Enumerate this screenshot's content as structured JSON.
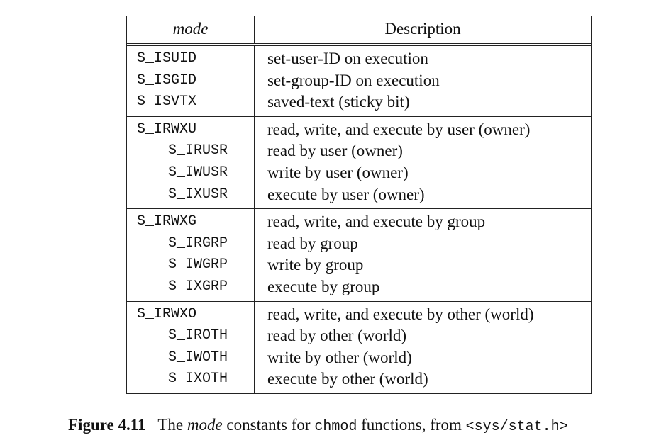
{
  "table": {
    "header": {
      "mode": "mode",
      "description": "Description"
    },
    "groups": [
      {
        "rows": [
          {
            "mode": "S_ISUID",
            "description": "set-user-ID on execution",
            "indent": false
          },
          {
            "mode": "S_ISGID",
            "description": "set-group-ID on execution",
            "indent": false
          },
          {
            "mode": "S_ISVTX",
            "description": "saved-text (sticky bit)",
            "indent": false
          }
        ]
      },
      {
        "rows": [
          {
            "mode": "S_IRWXU",
            "description": "read, write, and execute by user (owner)",
            "indent": false
          },
          {
            "mode": "S_IRUSR",
            "description": "read by user (owner)",
            "indent": true
          },
          {
            "mode": "S_IWUSR",
            "description": "write by user (owner)",
            "indent": true
          },
          {
            "mode": "S_IXUSR",
            "description": "execute by user (owner)",
            "indent": true
          }
        ]
      },
      {
        "rows": [
          {
            "mode": "S_IRWXG",
            "description": "read, write, and execute by group",
            "indent": false
          },
          {
            "mode": "S_IRGRP",
            "description": "read by group",
            "indent": true
          },
          {
            "mode": "S_IWGRP",
            "description": "write by group",
            "indent": true
          },
          {
            "mode": "S_IXGRP",
            "description": "execute by group",
            "indent": true
          }
        ]
      },
      {
        "rows": [
          {
            "mode": "S_IRWXO",
            "description": "read, write, and execute by other (world)",
            "indent": false
          },
          {
            "mode": "S_IROTH",
            "description": "read by other (world)",
            "indent": true
          },
          {
            "mode": "S_IWOTH",
            "description": "write by other (world)",
            "indent": true
          },
          {
            "mode": "S_IXOTH",
            "description": "execute by other (world)",
            "indent": true
          }
        ]
      }
    ]
  },
  "caption": {
    "figure_label": "Figure 4.11",
    "text_1": "The",
    "italic": "mode",
    "text_2": "constants for",
    "code_1": "chmod",
    "text_3": "functions, from",
    "code_2": "<sys/stat.h>"
  }
}
